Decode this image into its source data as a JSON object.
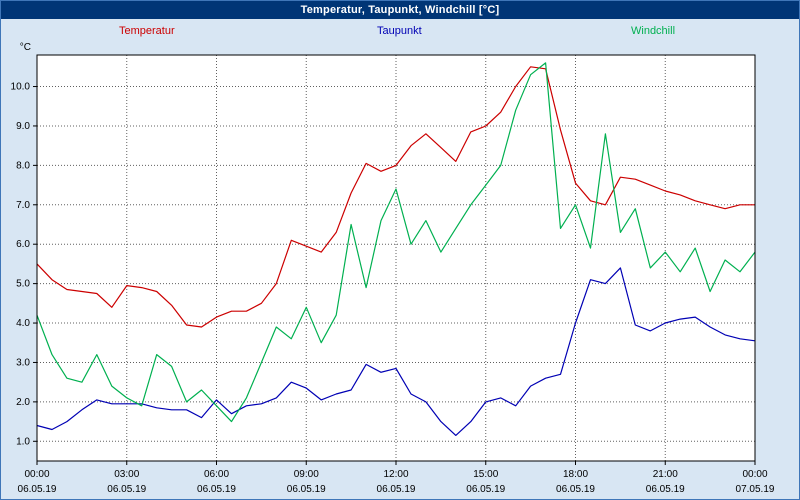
{
  "title_bar": {
    "title": "Temperatur, Taupunkt, Windchill [°C]"
  },
  "legend": {
    "temperatur": "Temperatur",
    "taupunkt": "Taupunkt",
    "windchill": "Windchill"
  },
  "colors": {
    "titlebar": "#003576",
    "background": "#d8e6f3",
    "temperatur": "#cc0000",
    "taupunkt": "#0000b4",
    "windchill": "#00b050",
    "grid": "#606060",
    "plot_border": "#000000"
  },
  "chart_data": {
    "type": "line",
    "title": "Temperatur, Taupunkt, Windchill [°C]",
    "ylabel": "°C",
    "xlabel": "",
    "grid": "dotted",
    "legend_position": "top",
    "ylim": [
      0.5,
      10.8
    ],
    "yticks": [
      1,
      2,
      3,
      4,
      5,
      6,
      7,
      8,
      9,
      10
    ],
    "x_range_hours": [
      0,
      24
    ],
    "x_step_hours": 0.5,
    "xticks": [
      {
        "hour": 0,
        "label": "00:00",
        "date": "06.05.19"
      },
      {
        "hour": 3,
        "label": "03:00",
        "date": "06.05.19"
      },
      {
        "hour": 6,
        "label": "06:00",
        "date": "06.05.19"
      },
      {
        "hour": 9,
        "label": "09:00",
        "date": "06.05.19"
      },
      {
        "hour": 12,
        "label": "12:00",
        "date": "06.05.19"
      },
      {
        "hour": 15,
        "label": "15:00",
        "date": "06.05.19"
      },
      {
        "hour": 18,
        "label": "18:00",
        "date": "06.05.19"
      },
      {
        "hour": 21,
        "label": "21:00",
        "date": "06.05.19"
      },
      {
        "hour": 24,
        "label": "00:00",
        "date": "07.05.19"
      }
    ],
    "series": [
      {
        "name": "Temperatur",
        "color": "#cc0000",
        "values": [
          5.5,
          5.1,
          4.85,
          4.8,
          4.75,
          4.4,
          4.95,
          4.9,
          4.8,
          4.45,
          3.95,
          3.9,
          4.15,
          4.3,
          4.3,
          4.5,
          5.0,
          6.1,
          5.95,
          5.8,
          6.3,
          7.3,
          8.05,
          7.85,
          8.0,
          8.5,
          8.8,
          8.45,
          8.1,
          8.85,
          9.0,
          9.35,
          10.0,
          10.5,
          10.45,
          8.9,
          7.55,
          7.1,
          7.0,
          7.7,
          7.65,
          7.5,
          7.35,
          7.25,
          7.1,
          7.0,
          6.9,
          7.0,
          7.0
        ]
      },
      {
        "name": "Taupunkt",
        "color": "#0000b4",
        "values": [
          1.4,
          1.3,
          1.5,
          1.8,
          2.05,
          1.95,
          1.95,
          1.95,
          1.85,
          1.8,
          1.8,
          1.6,
          2.05,
          1.7,
          1.9,
          1.95,
          2.1,
          2.5,
          2.35,
          2.05,
          2.2,
          2.3,
          2.95,
          2.75,
          2.85,
          2.2,
          2.0,
          1.5,
          1.15,
          1.5,
          2.0,
          2.1,
          1.9,
          2.4,
          2.6,
          2.7,
          4.0,
          5.1,
          5.0,
          5.4,
          3.95,
          3.8,
          4.0,
          4.1,
          4.15,
          3.9,
          3.7,
          3.6,
          3.55
        ]
      },
      {
        "name": "Windchill",
        "color": "#00b050",
        "values": [
          4.2,
          3.2,
          2.6,
          2.5,
          3.2,
          2.4,
          2.1,
          1.9,
          3.2,
          2.9,
          2.0,
          2.3,
          1.9,
          1.5,
          2.1,
          3.0,
          3.9,
          3.6,
          4.4,
          3.5,
          4.2,
          6.5,
          4.9,
          6.6,
          7.4,
          6.0,
          6.6,
          5.8,
          6.4,
          7.0,
          7.5,
          8.0,
          9.4,
          10.3,
          10.6,
          6.4,
          7.0,
          5.9,
          8.8,
          6.3,
          6.9,
          5.4,
          5.8,
          5.3,
          5.9,
          4.8,
          5.6,
          5.3,
          5.8
        ]
      }
    ]
  }
}
